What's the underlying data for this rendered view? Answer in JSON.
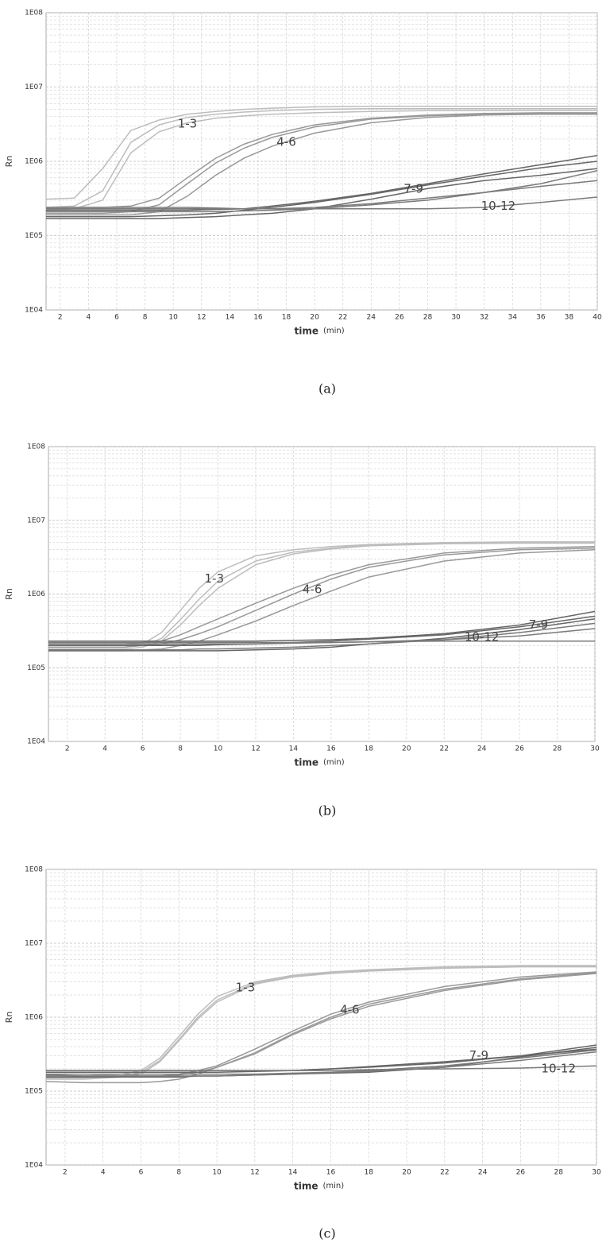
{
  "chart_data": [
    {
      "type": "line",
      "ylabel": "Rn",
      "xlabel": "time",
      "xlabel_unit": "(min)",
      "caption": "(a)",
      "log_y": true,
      "grid": true,
      "xlim": [
        1,
        40
      ],
      "xticks": [
        2,
        4,
        6,
        8,
        10,
        12,
        14,
        16,
        18,
        20,
        22,
        24,
        26,
        28,
        30,
        32,
        34,
        36,
        38,
        40
      ],
      "ylim": [
        10000,
        100000000
      ],
      "yticks": [
        {
          "value": 10000,
          "label": "1E04"
        },
        {
          "value": 100000,
          "label": "1E05"
        },
        {
          "value": 1000000,
          "label": "1E06"
        },
        {
          "value": 10000000,
          "label": "1E07"
        },
        {
          "value": 100000000,
          "label": "1E08"
        }
      ],
      "x": [
        1,
        3,
        5,
        7,
        9,
        11,
        13,
        15,
        17,
        20,
        24,
        28,
        32,
        36,
        40
      ],
      "series": [
        {
          "color": "#bdbdbd",
          "values": [
            310000.0,
            320000.0,
            800000.0,
            2600000.0,
            3600000.0,
            4300000.0,
            4700000.0,
            5000000.0,
            5200000.0,
            5400000.0,
            5500000.0,
            5500000.0,
            5500000.0,
            5500000.0,
            5500000.0
          ]
        },
        {
          "color": "#bdbdbd",
          "values": [
            240000.0,
            250000.0,
            400000.0,
            1800000.0,
            3100000.0,
            3900000.0,
            4300000.0,
            4600000.0,
            4800000.0,
            5000000.0,
            5100000.0,
            5100000.0,
            5100000.0,
            5100000.0,
            5100000.0
          ]
        },
        {
          "color": "#bdbdbd",
          "values": [
            220000.0,
            230000.0,
            300000.0,
            1300000.0,
            2500000.0,
            3300000.0,
            3800000.0,
            4100000.0,
            4300000.0,
            4500000.0,
            4700000.0,
            4800000.0,
            4800000.0,
            4800000.0,
            4800000.0
          ]
        },
        {
          "color": "#999999",
          "values": [
            240000.0,
            240000.0,
            240000.0,
            250000.0,
            320000.0,
            600000.0,
            1100000.0,
            1700000.0,
            2300000.0,
            3100000.0,
            3800000.0,
            4200000.0,
            4400000.0,
            4500000.0,
            4500000.0
          ]
        },
        {
          "color": "#999999",
          "values": [
            200000.0,
            200000.0,
            200000.0,
            210000.0,
            260000.0,
            500000.0,
            950000.0,
            1500000.0,
            2100000.0,
            2900000.0,
            3700000.0,
            4100000.0,
            4300000.0,
            4400000.0,
            4400000.0
          ]
        },
        {
          "color": "#999999",
          "values": [
            190000.0,
            190000.0,
            190000.0,
            190000.0,
            210000.0,
            340000.0,
            650000.0,
            1100000.0,
            1600000.0,
            2400000.0,
            3300000.0,
            3900000.0,
            4200000.0,
            4300000.0,
            4300000.0
          ]
        },
        {
          "color": "#666666",
          "values": [
            220000.0,
            220000.0,
            220000.0,
            220000.0,
            220000.0,
            220000.0,
            225000.0,
            230000.0,
            250000.0,
            290000.0,
            370000.0,
            500000.0,
            680000.0,
            900000.0,
            1200000.0
          ]
        },
        {
          "color": "#666666",
          "values": [
            180000.0,
            180000.0,
            180000.0,
            180000.0,
            185000.0,
            190000.0,
            200000.0,
            220000.0,
            240000.0,
            280000.0,
            360000.0,
            480000.0,
            630000.0,
            820000.0,
            1000000.0
          ]
        },
        {
          "color": "#666666",
          "values": [
            170000.0,
            170000.0,
            170000.0,
            170000.0,
            170000.0,
            175000.0,
            180000.0,
            190000.0,
            200000.0,
            230000.0,
            310000.0,
            430000.0,
            550000.0,
            650000.0,
            800000.0
          ]
        },
        {
          "color": "#7a7a7a",
          "values": [
            240000.0,
            240000.0,
            240000.0,
            240000.0,
            240000.0,
            240000.0,
            235000.0,
            230000.0,
            230000.0,
            230000.0,
            230000.0,
            230000.0,
            240000.0,
            280000.0,
            330000.0
          ]
        },
        {
          "color": "#7a7a7a",
          "values": [
            210000.0,
            210000.0,
            210000.0,
            210000.0,
            210000.0,
            210000.0,
            210000.0,
            215000.0,
            220000.0,
            230000.0,
            260000.0,
            300000.0,
            380000.0,
            500000.0,
            750000.0
          ]
        },
        {
          "color": "#7a7a7a",
          "values": [
            230000.0,
            230000.0,
            230000.0,
            230000.0,
            230000.0,
            230000.0,
            230000.0,
            230000.0,
            230000.0,
            240000.0,
            270000.0,
            320000.0,
            380000.0,
            460000.0,
            550000.0
          ]
        }
      ],
      "annotations": [
        {
          "text": "1-3",
          "x": 11,
          "y": 3200000.0
        },
        {
          "text": "4-6",
          "x": 18,
          "y": 1800000.0
        },
        {
          "text": "7-9",
          "x": 27,
          "y": 420000.0
        },
        {
          "text": "10-12",
          "x": 33,
          "y": 250000.0
        }
      ]
    },
    {
      "type": "line",
      "ylabel": "Rn",
      "xlabel": "time",
      "xlabel_unit": "(min)",
      "caption": "(b)",
      "log_y": true,
      "grid": true,
      "xlim": [
        1,
        30
      ],
      "xticks": [
        2,
        4,
        6,
        8,
        10,
        12,
        14,
        16,
        18,
        20,
        22,
        24,
        26,
        28,
        30
      ],
      "ylim": [
        10000,
        100000000
      ],
      "yticks": [
        {
          "value": 10000,
          "label": "1E04"
        },
        {
          "value": 100000,
          "label": "1E05"
        },
        {
          "value": 1000000,
          "label": "1E06"
        },
        {
          "value": 10000000,
          "label": "1E07"
        },
        {
          "value": 100000000,
          "label": "1E08"
        }
      ],
      "x": [
        1,
        3,
        5,
        6,
        7,
        8,
        9,
        10,
        12,
        14,
        16,
        18,
        22,
        26,
        30
      ],
      "series": [
        {
          "color": "#bdbdbd",
          "values": [
            200000.0,
            200000.0,
            200000.0,
            210000.0,
            300000.0,
            600000.0,
            1200000.0,
            2000000.0,
            3300000.0,
            4000000.0,
            4400000.0,
            4700000.0,
            5000000.0,
            5100000.0,
            5100000.0
          ]
        },
        {
          "color": "#bdbdbd",
          "values": [
            190000.0,
            190000.0,
            190000.0,
            200000.0,
            250000.0,
            450000.0,
            850000.0,
            1500000.0,
            2800000.0,
            3700000.0,
            4200000.0,
            4600000.0,
            4900000.0,
            5000000.0,
            5000000.0
          ]
        },
        {
          "color": "#bdbdbd",
          "values": [
            180000.0,
            180000.0,
            180000.0,
            190000.0,
            230000.0,
            380000.0,
            700000.0,
            1200000.0,
            2500000.0,
            3500000.0,
            4100000.0,
            4500000.0,
            4800000.0,
            4900000.0,
            4900000.0
          ]
        },
        {
          "color": "#999999",
          "values": [
            210000.0,
            210000.0,
            210000.0,
            220000.0,
            230000.0,
            280000.0,
            360000.0,
            460000.0,
            750000.0,
            1200000.0,
            1800000.0,
            2500000.0,
            3600000.0,
            4200000.0,
            4400000.0
          ]
        },
        {
          "color": "#999999",
          "values": [
            190000.0,
            190000.0,
            190000.0,
            200000.0,
            210000.0,
            240000.0,
            290000.0,
            360000.0,
            600000.0,
            1000000.0,
            1600000.0,
            2300000.0,
            3400000.0,
            4000000.0,
            4200000.0
          ]
        },
        {
          "color": "#999999",
          "values": [
            170000.0,
            170000.0,
            170000.0,
            175000.0,
            180000.0,
            200000.0,
            230000.0,
            280000.0,
            430000.0,
            700000.0,
            1100000.0,
            1700000.0,
            2800000.0,
            3600000.0,
            4000000.0
          ]
        },
        {
          "color": "#666666",
          "values": [
            230000.0,
            230000.0,
            230000.0,
            230000.0,
            230000.0,
            230000.0,
            230000.0,
            230000.0,
            230000.0,
            235000.0,
            240000.0,
            250000.0,
            290000.0,
            380000.0,
            580000.0
          ]
        },
        {
          "color": "#666666",
          "values": [
            200000.0,
            200000.0,
            200000.0,
            200000.0,
            200000.0,
            200000.0,
            200000.0,
            205000.0,
            210000.0,
            220000.0,
            230000.0,
            245000.0,
            280000.0,
            360000.0,
            500000.0
          ]
        },
        {
          "color": "#666666",
          "values": [
            170000.0,
            170000.0,
            170000.0,
            170000.0,
            170000.0,
            170000.0,
            170000.0,
            170000.0,
            175000.0,
            180000.0,
            190000.0,
            210000.0,
            250000.0,
            330000.0,
            460000.0
          ]
        },
        {
          "color": "#7a7a7a",
          "values": [
            220000.0,
            220000.0,
            220000.0,
            220000.0,
            220000.0,
            220000.0,
            220000.0,
            220000.0,
            220000.0,
            220000.0,
            220000.0,
            225000.0,
            230000.0,
            230000.0,
            230000.0
          ]
        },
        {
          "color": "#7a7a7a",
          "values": [
            210000.0,
            210000.0,
            210000.0,
            210000.0,
            210000.0,
            210000.0,
            210000.0,
            210000.0,
            210000.0,
            215000.0,
            220000.0,
            225000.0,
            240000.0,
            270000.0,
            340000.0
          ]
        },
        {
          "color": "#7a7a7a",
          "values": [
            175000.0,
            175000.0,
            175000.0,
            175000.0,
            175000.0,
            175000.0,
            180000.0,
            180000.0,
            185000.0,
            190000.0,
            200000.0,
            210000.0,
            240000.0,
            300000.0,
            400000.0
          ]
        }
      ],
      "annotations": [
        {
          "text": "1-3",
          "x": 9.8,
          "y": 1600000.0
        },
        {
          "text": "4-6",
          "x": 15,
          "y": 1150000.0
        },
        {
          "text": "7-9",
          "x": 27,
          "y": 380000.0
        },
        {
          "text": "10-12",
          "x": 24,
          "y": 260000.0
        }
      ]
    },
    {
      "type": "line",
      "ylabel": "Rn",
      "xlabel": "time",
      "xlabel_unit": "(min)",
      "caption": "(c)",
      "log_y": true,
      "grid": true,
      "xlim": [
        1,
        30
      ],
      "xticks": [
        2,
        4,
        6,
        8,
        10,
        12,
        14,
        16,
        18,
        20,
        22,
        24,
        26,
        28,
        30
      ],
      "ylim": [
        10000,
        100000000
      ],
      "yticks": [
        {
          "value": 10000,
          "label": "1E04"
        },
        {
          "value": 100000,
          "label": "1E05"
        },
        {
          "value": 1000000,
          "label": "1E06"
        },
        {
          "value": 10000000,
          "label": "1E07"
        },
        {
          "value": 100000000,
          "label": "1E08"
        }
      ],
      "x": [
        1,
        3,
        5,
        6,
        7,
        8,
        9,
        10,
        12,
        14,
        16,
        18,
        22,
        26,
        30
      ],
      "series": [
        {
          "color": "#bdbdbd",
          "values": [
            160000.0,
            160000.0,
            170000.0,
            190000.0,
            280000.0,
            550000.0,
            1100000.0,
            1900000.0,
            3000000.0,
            3700000.0,
            4100000.0,
            4400000.0,
            4800000.0,
            5000000.0,
            5000000.0
          ]
        },
        {
          "color": "#bdbdbd",
          "values": [
            150000.0,
            150000.0,
            160000.0,
            180000.0,
            260000.0,
            500000.0,
            1000000.0,
            1700000.0,
            2900000.0,
            3600000.0,
            4000000.0,
            4300000.0,
            4700000.0,
            4900000.0,
            4900000.0
          ]
        },
        {
          "color": "#bdbdbd",
          "values": [
            145000.0,
            145000.0,
            155000.0,
            170000.0,
            250000.0,
            480000.0,
            950000.0,
            1600000.0,
            2800000.0,
            3500000.0,
            3900000.0,
            4200000.0,
            4600000.0,
            4800000.0,
            4800000.0
          ]
        },
        {
          "color": "#999999",
          "values": [
            160000.0,
            160000.0,
            160000.0,
            160000.0,
            160000.0,
            170000.0,
            190000.0,
            220000.0,
            370000.0,
            650000.0,
            1100000.0,
            1600000.0,
            2600000.0,
            3500000.0,
            4100000.0
          ]
        },
        {
          "color": "#999999",
          "values": [
            160000.0,
            160000.0,
            160000.0,
            160000.0,
            160000.0,
            165000.0,
            180000.0,
            210000.0,
            330000.0,
            600000.0,
            1000000.0,
            1500000.0,
            2400000.0,
            3300000.0,
            4000000.0
          ]
        },
        {
          "color": "#999999",
          "values": [
            135000.0,
            130000.0,
            130000.0,
            130000.0,
            135000.0,
            145000.0,
            170000.0,
            210000.0,
            320000.0,
            580000.0,
            950000.0,
            1400000.0,
            2300000.0,
            3200000.0,
            3900000.0
          ]
        },
        {
          "color": "#666666",
          "values": [
            190000.0,
            190000.0,
            190000.0,
            190000.0,
            190000.0,
            190000.0,
            190000.0,
            190000.0,
            190000.0,
            190000.0,
            200000.0,
            210000.0,
            240000.0,
            300000.0,
            420000.0
          ]
        },
        {
          "color": "#666666",
          "values": [
            180000.0,
            180000.0,
            180000.0,
            180000.0,
            180000.0,
            180000.0,
            180000.0,
            180000.0,
            185000.0,
            190000.0,
            200000.0,
            215000.0,
            250000.0,
            300000.0,
            370000.0
          ]
        },
        {
          "color": "#666666",
          "values": [
            155000.0,
            155000.0,
            155000.0,
            155000.0,
            155000.0,
            155000.0,
            160000.0,
            160000.0,
            165000.0,
            170000.0,
            175000.0,
            180000.0,
            210000.0,
            290000.0,
            390000.0
          ]
        },
        {
          "color": "#7a7a7a",
          "values": [
            190000.0,
            190000.0,
            190000.0,
            190000.0,
            190000.0,
            190000.0,
            190000.0,
            190000.0,
            190000.0,
            190000.0,
            190000.0,
            195000.0,
            200000.0,
            205000.0,
            220000.0
          ]
        },
        {
          "color": "#7a7a7a",
          "values": [
            170000.0,
            170000.0,
            170000.0,
            170000.0,
            170000.0,
            170000.0,
            170000.0,
            170000.0,
            170000.0,
            175000.0,
            180000.0,
            190000.0,
            220000.0,
            280000.0,
            360000.0
          ]
        },
        {
          "color": "#7a7a7a",
          "values": [
            165000.0,
            160000.0,
            160000.0,
            160000.0,
            160000.0,
            160000.0,
            160000.0,
            160000.0,
            165000.0,
            170000.0,
            180000.0,
            185000.0,
            210000.0,
            260000.0,
            340000.0
          ]
        }
      ],
      "annotations": [
        {
          "text": "1-3",
          "x": 11.5,
          "y": 2500000.0
        },
        {
          "text": "4-6",
          "x": 17,
          "y": 1250000.0
        },
        {
          "text": "7-9",
          "x": 23.8,
          "y": 300000.0
        },
        {
          "text": "10-12",
          "x": 28,
          "y": 200000.0
        }
      ]
    }
  ]
}
